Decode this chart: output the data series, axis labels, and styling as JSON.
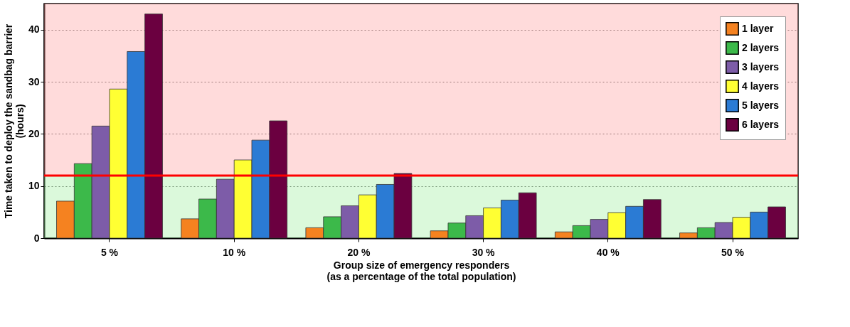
{
  "chart_data": {
    "type": "bar",
    "xlabel": "Group size of emergency responders\n(as a percentage of the total population)",
    "ylabel": "Time taken to deploy the sandbag barrier\n(hours)",
    "categories": [
      "5 %",
      "10 %",
      "20 %",
      "30 %",
      "40 %",
      "50 %"
    ],
    "series": [
      {
        "name": "1 layer",
        "color": "#f58220",
        "values": [
          7.1,
          3.7,
          2.0,
          1.4,
          1.2,
          1.0
        ]
      },
      {
        "name": "2 layers",
        "color": "#3cb94a",
        "values": [
          14.3,
          7.5,
          4.1,
          2.9,
          2.4,
          2.0
        ]
      },
      {
        "name": "3 layers",
        "color": "#7d5ca8",
        "values": [
          21.5,
          11.3,
          6.2,
          4.3,
          3.6,
          3.0
        ]
      },
      {
        "name": "4 layers",
        "color": "#ffff33",
        "values": [
          28.6,
          15.0,
          8.3,
          5.8,
          4.9,
          4.0
        ]
      },
      {
        "name": "5 layers",
        "color": "#2b7bd4",
        "values": [
          35.8,
          18.8,
          10.3,
          7.3,
          6.1,
          5.0
        ]
      },
      {
        "name": "6 layers",
        "color": "#6b0040",
        "values": [
          43.0,
          22.5,
          12.4,
          8.7,
          7.4,
          6.0
        ]
      }
    ],
    "ylim": [
      0,
      45
    ],
    "yticks": [
      0,
      10,
      20,
      30,
      40
    ],
    "grid": "y",
    "legend": "top right",
    "ref_lines": [
      {
        "axis": "y",
        "value": 12,
        "color": "#ff0000"
      }
    ],
    "bands": [
      {
        "axis": "y",
        "from": 12,
        "to": 45,
        "color": "#ff9999"
      },
      {
        "axis": "y",
        "from": 0,
        "to": 12,
        "color": "#99ee99"
      }
    ]
  }
}
